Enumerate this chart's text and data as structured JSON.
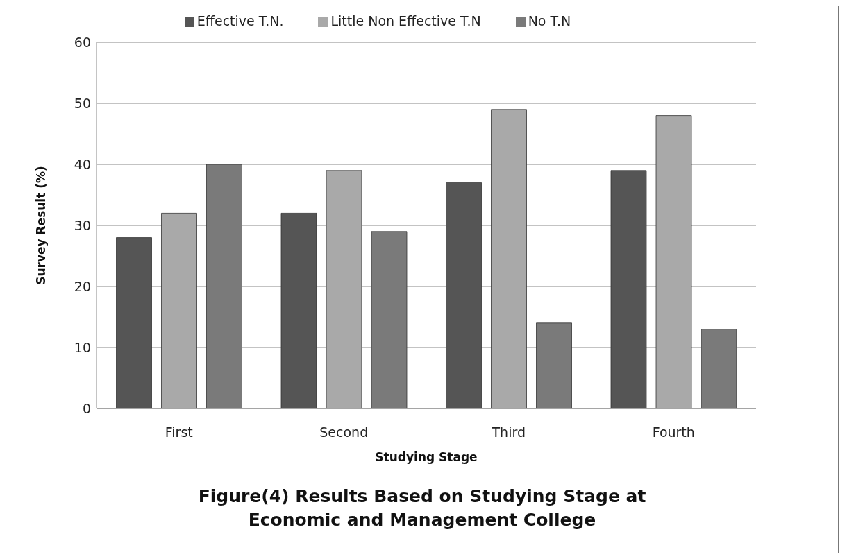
{
  "chart_data": {
    "type": "bar",
    "title": "Figure(4) Results Based on Studying Stage at Economic and Management College",
    "xlabel": "Studying Stage",
    "ylabel": "Survey Result (%)",
    "categories": [
      "First",
      "Second",
      "Third",
      "Fourth"
    ],
    "series": [
      {
        "name": "Effective T.N.",
        "color": "#555555",
        "values": [
          28,
          32,
          37,
          39
        ]
      },
      {
        "name": "Little Non Effective T.N",
        "color": "#a9a9a9",
        "values": [
          32,
          39,
          49,
          48
        ]
      },
      {
        "name": "No T.N",
        "color": "#7a7a7a",
        "values": [
          40,
          29,
          14,
          13
        ]
      }
    ],
    "ylim": [
      0,
      60
    ],
    "yticks": [
      0,
      10,
      20,
      30,
      40,
      50,
      60
    ],
    "grid": "y",
    "legend": "top"
  }
}
